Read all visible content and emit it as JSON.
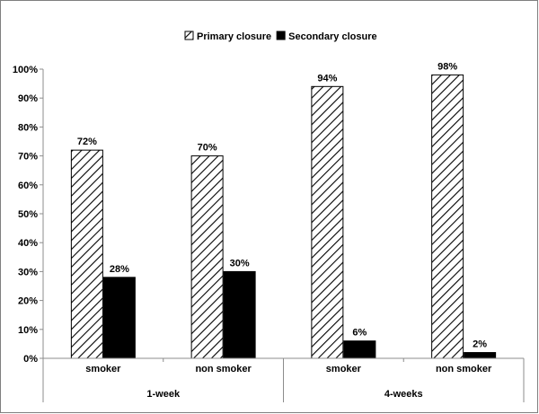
{
  "chart_data": {
    "type": "bar",
    "groups": [
      "1-week",
      "4-weeks"
    ],
    "categories": [
      "smoker",
      "non smoker",
      "smoker",
      "non smoker"
    ],
    "category_group": [
      0,
      0,
      1,
      1
    ],
    "series": [
      {
        "name": "Primary closure",
        "values": [
          72,
          70,
          94,
          98
        ],
        "labels": [
          "72%",
          "70%",
          "94%",
          "98%"
        ],
        "fill": "hatch"
      },
      {
        "name": "Secondary closure",
        "values": [
          28,
          30,
          6,
          2
        ],
        "labels": [
          "28%",
          "30%",
          "6%",
          "2%"
        ],
        "fill": "solid"
      }
    ],
    "y_ticks": [
      "0%",
      "10%",
      "20%",
      "30%",
      "40%",
      "50%",
      "60%",
      "70%",
      "80%",
      "90%",
      "100%"
    ],
    "ylim": [
      0,
      100
    ],
    "legend_position": "top-center",
    "grid": false,
    "title": "",
    "xlabel": "",
    "ylabel": ""
  },
  "colors": {
    "solid_bar": "#000000",
    "axis": "#8c8c8c",
    "frame": "#7f7f7f"
  }
}
